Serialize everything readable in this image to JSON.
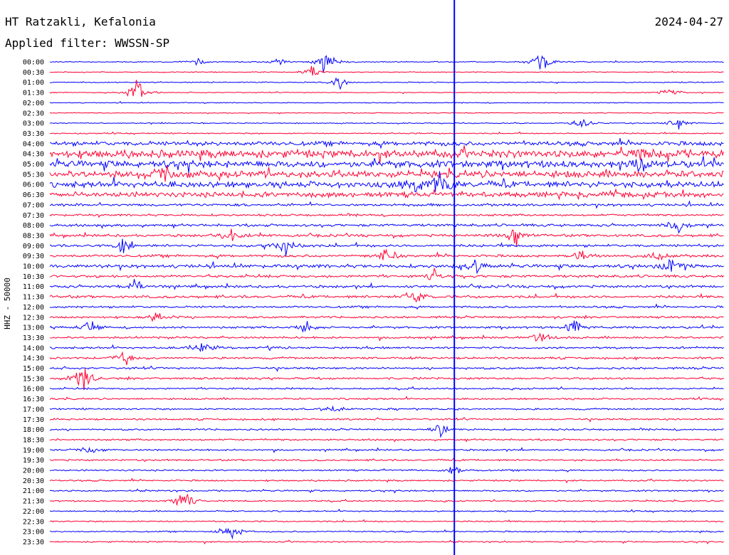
{
  "header": {
    "station": "HT Ratzakli, Kefalonia",
    "date": "2024-04-27",
    "filter": "Applied filter: WWSSN-SP"
  },
  "chart_data": {
    "type": "line",
    "title": "HT Ratzakli, Kefalonia",
    "ylabel": "HHZ - 50000",
    "row_labels": [
      "00:00",
      "00:30",
      "01:00",
      "01:30",
      "02:00",
      "02:30",
      "03:00",
      "03:30",
      "04:00",
      "04:30",
      "05:00",
      "05:30",
      "06:00",
      "06:30",
      "07:00",
      "07:30",
      "08:00",
      "08:30",
      "09:00",
      "09:30",
      "10:00",
      "10:30",
      "11:00",
      "11:30",
      "12:00",
      "12:30",
      "13:00",
      "13:30",
      "14:00",
      "14:30",
      "15:00",
      "15:30",
      "16:00",
      "16:30",
      "17:00",
      "17:30",
      "18:00",
      "18:30",
      "19:00",
      "19:30",
      "20:00",
      "20:30",
      "21:00",
      "21:30",
      "22:00",
      "22:30",
      "23:00",
      "23:30"
    ],
    "trace_colors": [
      "#0000ff",
      "#ff0033"
    ],
    "row_noise": [
      0.6,
      0.5,
      0.6,
      0.5,
      0.5,
      0.5,
      0.6,
      0.7,
      2.5,
      4.5,
      4,
      4,
      3.5,
      3,
      1.5,
      1.2,
      1.5,
      1.5,
      1.5,
      1.5,
      2,
      1.5,
      1.5,
      1.5,
      1.2,
      1.2,
      1.2,
      1.2,
      1.2,
      1.2,
      1.2,
      1.2,
      1,
      1,
      1,
      1,
      1,
      1,
      1,
      1,
      0.9,
      0.9,
      0.9,
      0.8,
      0.8,
      0.8,
      0.8,
      0.8
    ],
    "events": [
      {
        "row": 0,
        "t": 0.22,
        "amp": 6
      },
      {
        "row": 0,
        "t": 0.34,
        "amp": 5
      },
      {
        "row": 0,
        "t": 0.41,
        "amp": 18
      },
      {
        "row": 0,
        "t": 0.73,
        "amp": 20
      },
      {
        "row": 1,
        "t": 0.39,
        "amp": 8
      },
      {
        "row": 2,
        "t": 0.43,
        "amp": 8
      },
      {
        "row": 3,
        "t": 0.13,
        "amp": 18
      },
      {
        "row": 3,
        "t": 0.92,
        "amp": 7
      },
      {
        "row": 6,
        "t": 0.79,
        "amp": 8
      },
      {
        "row": 6,
        "t": 0.93,
        "amp": 10
      },
      {
        "row": 9,
        "t": 0.88,
        "amp": 10
      },
      {
        "row": 10,
        "t": 0.88,
        "amp": 8
      },
      {
        "row": 11,
        "t": 0.17,
        "amp": 10
      },
      {
        "row": 12,
        "t": 0.54,
        "amp": 14
      },
      {
        "row": 12,
        "t": 0.58,
        "amp": 20
      },
      {
        "row": 16,
        "t": 0.93,
        "amp": 10
      },
      {
        "row": 17,
        "t": 0.27,
        "amp": 8
      },
      {
        "row": 17,
        "t": 0.69,
        "amp": 12
      },
      {
        "row": 18,
        "t": 0.11,
        "amp": 10
      },
      {
        "row": 18,
        "t": 0.35,
        "amp": 10
      },
      {
        "row": 19,
        "t": 0.5,
        "amp": 12
      },
      {
        "row": 19,
        "t": 0.79,
        "amp": 8
      },
      {
        "row": 19,
        "t": 0.9,
        "amp": 8
      },
      {
        "row": 20,
        "t": 0.63,
        "amp": 12
      },
      {
        "row": 20,
        "t": 0.92,
        "amp": 12
      },
      {
        "row": 21,
        "t": 0.57,
        "amp": 8
      },
      {
        "row": 22,
        "t": 0.13,
        "amp": 10
      },
      {
        "row": 23,
        "t": 0.54,
        "amp": 10
      },
      {
        "row": 25,
        "t": 0.16,
        "amp": 10
      },
      {
        "row": 26,
        "t": 0.06,
        "amp": 8
      },
      {
        "row": 26,
        "t": 0.38,
        "amp": 8
      },
      {
        "row": 26,
        "t": 0.78,
        "amp": 12
      },
      {
        "row": 27,
        "t": 0.73,
        "amp": 10
      },
      {
        "row": 28,
        "t": 0.23,
        "amp": 10
      },
      {
        "row": 29,
        "t": 0.11,
        "amp": 10
      },
      {
        "row": 31,
        "t": 0.05,
        "amp": 22
      },
      {
        "row": 34,
        "t": 0.42,
        "amp": 8
      },
      {
        "row": 36,
        "t": 0.58,
        "amp": 10
      },
      {
        "row": 38,
        "t": 0.06,
        "amp": 6
      },
      {
        "row": 40,
        "t": 0.6,
        "amp": 6
      },
      {
        "row": 43,
        "t": 0.2,
        "amp": 16
      },
      {
        "row": 46,
        "t": 0.27,
        "amp": 10
      }
    ],
    "marker": {
      "t": 0.6,
      "color": "#0000ff"
    }
  }
}
